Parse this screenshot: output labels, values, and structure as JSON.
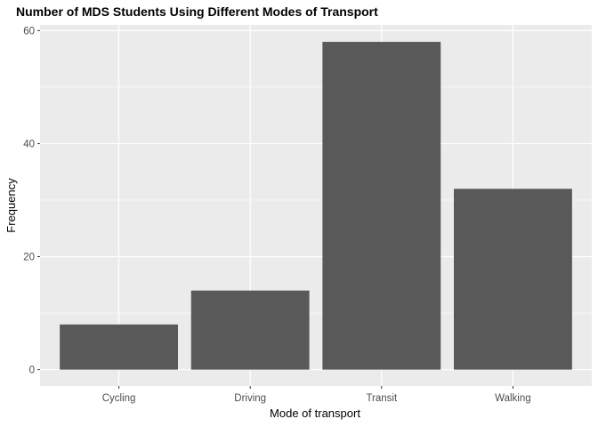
{
  "chart_data": {
    "type": "bar",
    "title": "Number of MDS Students Using Different Modes of Transport",
    "xlabel": "Mode of transport",
    "ylabel": "Frequency",
    "categories": [
      "Cycling",
      "Driving",
      "Transit",
      "Walking"
    ],
    "values": [
      8,
      14,
      58,
      32
    ],
    "ylim": [
      -2.9,
      61
    ],
    "yticks": [
      0,
      20,
      40,
      60
    ],
    "grid": true,
    "legend": "none",
    "colors": {
      "bar": "#595959",
      "panel": "#ebebeb",
      "grid": "#ffffff",
      "tick_text": "#4d4d4d"
    }
  }
}
